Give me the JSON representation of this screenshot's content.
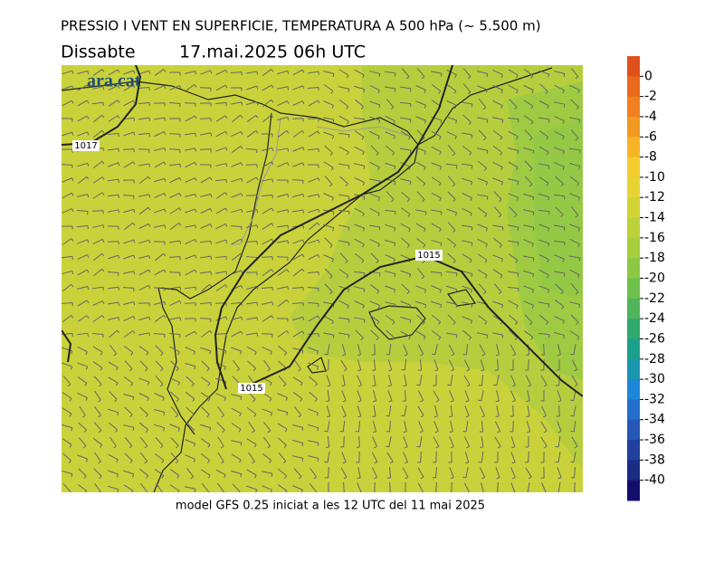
{
  "header": {
    "title": "PRESSIO I VENT EN SUPERFICIE, TEMPERATURA A 500 hPa (~ 5.500 m)",
    "day": "Dissabte",
    "datetime": "17.mai.2025 06h UTC"
  },
  "map": {
    "logo": "ara.cat",
    "isobar_labels": [
      "1017",
      "1015",
      "1015"
    ]
  },
  "colorbar": {
    "lim": [
      2,
      -42
    ],
    "ticks": [
      0,
      -2,
      -4,
      -6,
      -8,
      -10,
      -12,
      -14,
      -16,
      -18,
      -20,
      -22,
      -24,
      -26,
      -28,
      -30,
      -32,
      -34,
      -36,
      -38,
      -40
    ],
    "colors": [
      "#e0501e",
      "#ea6a1c",
      "#f08020",
      "#f39a22",
      "#f6b426",
      "#f3cd2c",
      "#e6d432",
      "#d2d436",
      "#bcd23a",
      "#a6ce3e",
      "#8cc844",
      "#6ec04c",
      "#50b45a",
      "#30a86e",
      "#1ca08a",
      "#1a96b0",
      "#1e86d8",
      "#2470cc",
      "#2458b4",
      "#20409c",
      "#1a2c84",
      "#140e6c"
    ]
  },
  "footer": "model GFS 0.25 iniciat a les 12 UTC del 11 mai 2025"
}
